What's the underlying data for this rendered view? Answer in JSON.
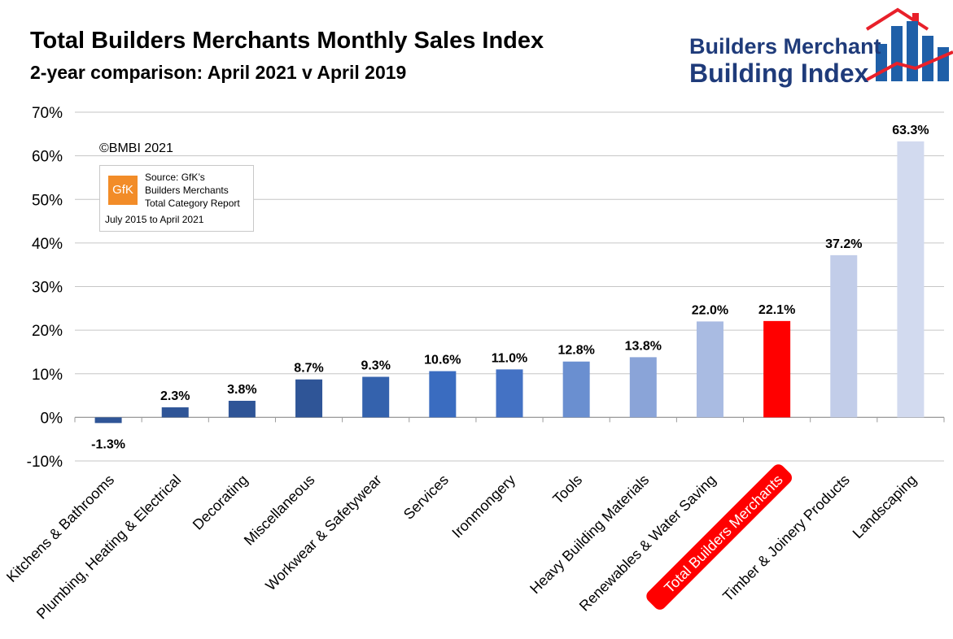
{
  "header": {
    "title": "Total Builders Merchants Monthly Sales Index",
    "subtitle": "2-year comparison: April 2021 v April 2019"
  },
  "logo": {
    "line1": "Builders Merchant",
    "line2": "Building Index",
    "colors": {
      "blue": "#1f5fa8",
      "red": "#e8202a",
      "navy": "#1f3b7a"
    }
  },
  "annotations": {
    "copyright": "©BMBI 2021",
    "source_badge": "GfK",
    "source_lines": [
      "Source: GfK’s",
      "Builders Merchants",
      "Total Category Report"
    ],
    "source_range": "July 2015 to April 2021"
  },
  "chart_data": {
    "type": "bar",
    "title": "Total Builders Merchants Monthly Sales Index",
    "subtitle": "2-year comparison: April 2021 v April 2019",
    "categories": [
      "Kitchens & Bathrooms",
      "Plumbing, Heating & Electrical",
      "Decorating",
      "Miscellaneous",
      "Workwear & Safetywear",
      "Services",
      "Ironmongery",
      "Tools",
      "Heavy Building Materials",
      "Renewables & Water Saving",
      "Total Builders Merchants",
      "Timber & Joinery Products",
      "Landscaping"
    ],
    "values": [
      -1.3,
      2.3,
      3.8,
      8.7,
      9.3,
      10.6,
      11.0,
      12.8,
      13.8,
      22.0,
      22.1,
      37.2,
      63.3
    ],
    "data_labels": [
      "-1.3%",
      "2.3%",
      "3.8%",
      "8.7%",
      "9.3%",
      "10.6%",
      "11.0%",
      "12.8%",
      "13.8%",
      "22.0%",
      "22.1%",
      "37.2%",
      "63.3%"
    ],
    "colors": [
      "#2f5597",
      "#2f5597",
      "#2f5597",
      "#2f5597",
      "#3462ad",
      "#3a6cc0",
      "#4472c4",
      "#6a8fd0",
      "#8aa4d8",
      "#a9bbe2",
      "#ff0000",
      "#c2cde9",
      "#d2daef"
    ],
    "highlight_category": "Total Builders Merchants",
    "highlight_color": "#ff0000",
    "ylim": [
      -10,
      70
    ],
    "yticks": [
      "-10%",
      "0%",
      "10%",
      "20%",
      "30%",
      "40%",
      "50%",
      "60%",
      "70%"
    ],
    "ytick_values": [
      -10,
      0,
      10,
      20,
      30,
      40,
      50,
      60,
      70
    ],
    "grid": true,
    "legend": "none"
  }
}
